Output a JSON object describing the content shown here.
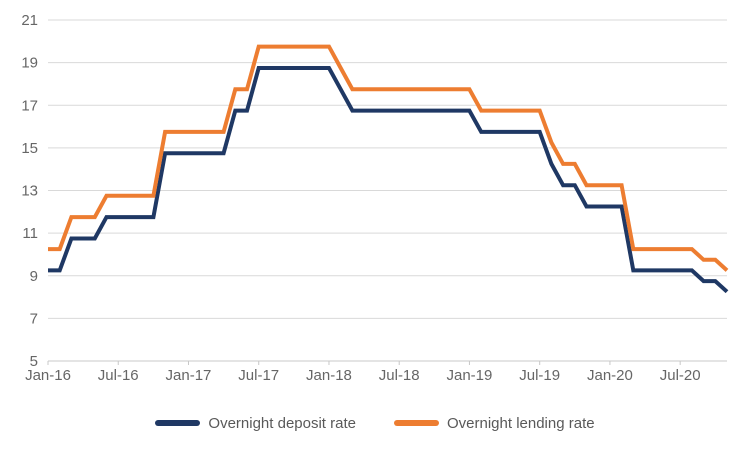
{
  "chart_data": {
    "type": "line",
    "subtype": "step-monthly",
    "title": "",
    "xlabel": "",
    "ylabel": "",
    "x_range": [
      "Jan-16",
      "Nov-20"
    ],
    "x_tick_labels": [
      "Jan-16",
      "Jul-16",
      "Jan-17",
      "Jul-17",
      "Jan-18",
      "Jul-18",
      "Jan-19",
      "Jul-19",
      "Jan-20",
      "Jul-20"
    ],
    "ylim": [
      5,
      21
    ],
    "y_ticks": [
      5,
      7,
      9,
      11,
      13,
      15,
      17,
      19,
      21
    ],
    "grid": true,
    "legend_position": "bottom",
    "series": [
      {
        "name": "Overnight deposit rate",
        "color": "#1f3864",
        "rate_changes": {
          "Jan-16": 9.25,
          "Mar-16": 10.75,
          "Jun-16": 11.75,
          "Nov-16": 14.75,
          "May-17": 16.75,
          "Jul-17": 18.75,
          "Feb-18": 17.75,
          "Mar-18": 16.75,
          "Feb-19": 15.75,
          "Aug-19": 14.25,
          "Sep-19": 13.25,
          "Nov-19": 12.25,
          "Mar-20": 9.25,
          "Sep-20": 8.75,
          "Nov-20": 8.25
        }
      },
      {
        "name": "Overnight lending rate",
        "color": "#ed7d31",
        "rate_changes": {
          "Jan-16": 10.25,
          "Mar-16": 11.75,
          "Jun-16": 12.75,
          "Nov-16": 15.75,
          "May-17": 17.75,
          "Jul-17": 19.75,
          "Feb-18": 18.75,
          "Mar-18": 17.75,
          "Feb-19": 16.75,
          "Aug-19": 15.25,
          "Sep-19": 14.25,
          "Nov-19": 13.25,
          "Mar-20": 10.25,
          "Sep-20": 9.75,
          "Nov-20": 9.25
        }
      }
    ]
  },
  "legend": {
    "deposit_label": "Overnight deposit rate",
    "lending_label": "Overnight lending rate"
  },
  "ui_colors": {
    "background": "#ffffff",
    "gridline": "#d9d9d9",
    "axis_line": "#c8c8c8",
    "axis_text": "#666666",
    "legend_text": "#595959"
  }
}
